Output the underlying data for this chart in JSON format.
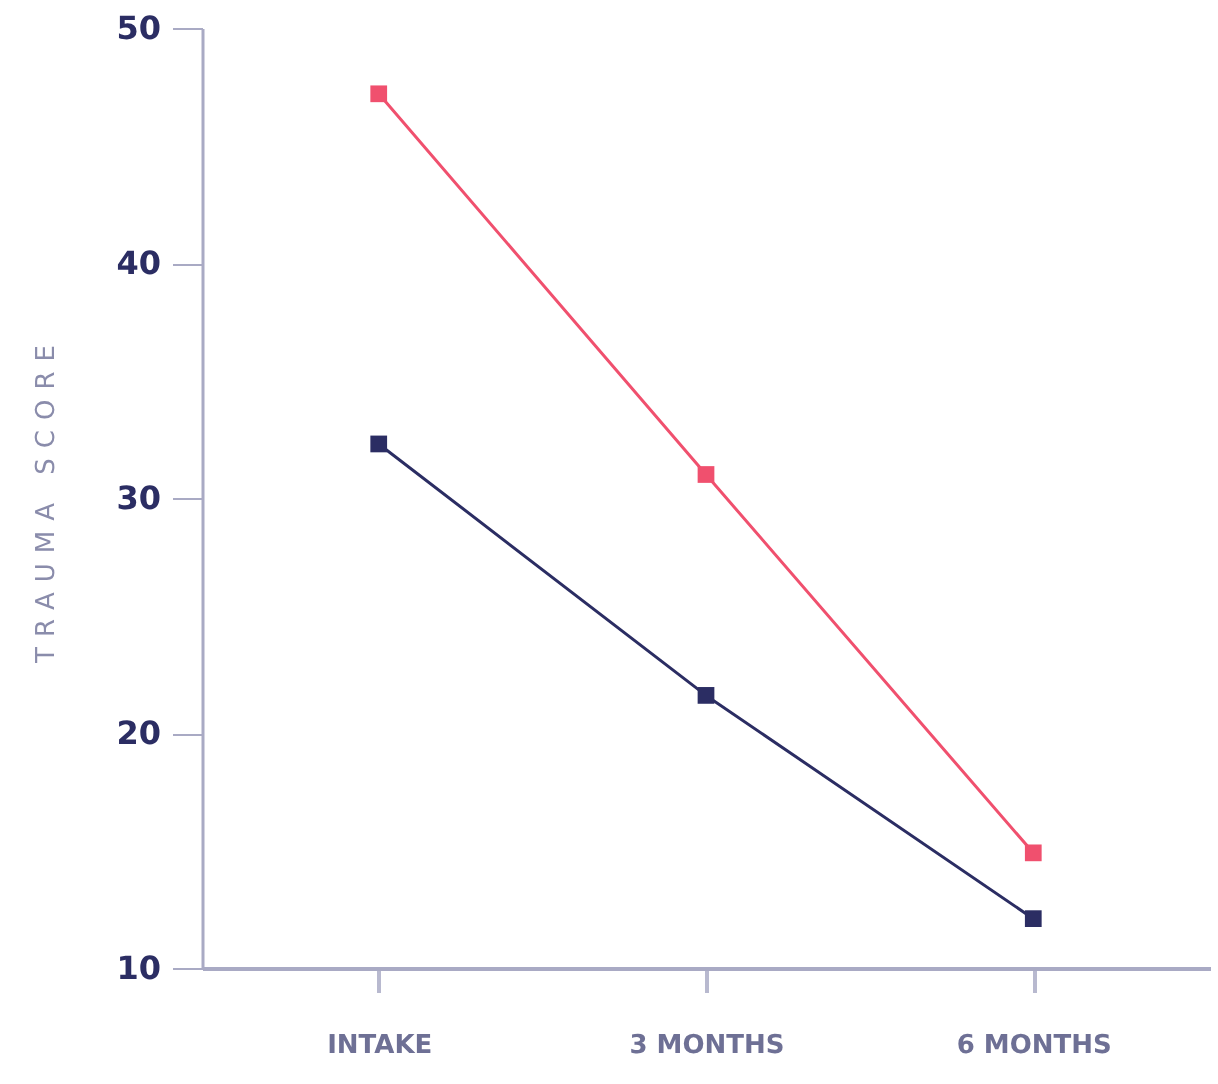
{
  "chart_data": {
    "type": "line",
    "ylabel": "TRAUMA SCORE",
    "categories": [
      "INTAKE",
      "3 MONTHS",
      "6 MONTHS"
    ],
    "series": [
      {
        "color": "#f0506e",
        "values": [
          47.2,
          31.0,
          14.9
        ]
      },
      {
        "color": "#2b2d63",
        "values": [
          32.3,
          21.6,
          12.1
        ]
      }
    ],
    "ylim": [
      10,
      50
    ],
    "yticks": [
      10,
      20,
      30,
      40,
      50
    ],
    "marker": "square"
  }
}
